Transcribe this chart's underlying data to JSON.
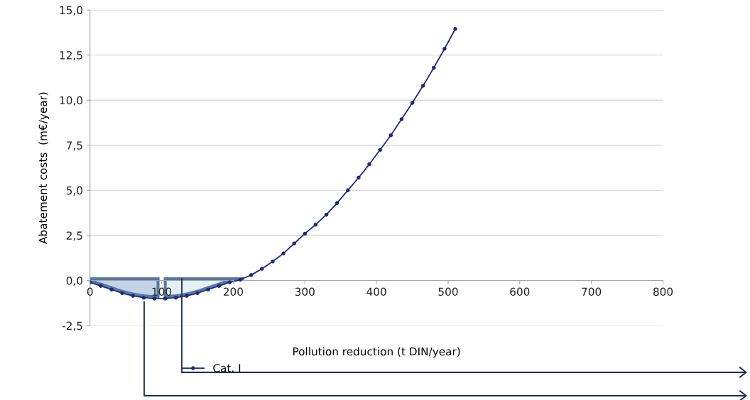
{
  "chart_data": {
    "type": "line",
    "xlabel": "Pollution reduction (t DIN/year)",
    "ylabel": "Abatement costs  (m€/year)",
    "x": [
      0,
      15,
      30,
      45,
      60,
      75,
      90,
      105,
      120,
      135,
      150,
      165,
      180,
      195,
      210,
      225,
      240,
      255,
      270,
      285,
      300,
      315,
      330,
      345,
      360,
      375,
      390,
      405,
      420,
      435,
      450,
      465,
      480,
      495,
      510
    ],
    "series": [
      {
        "name": "Cat. I",
        "color": "#1c2a80",
        "values": [
          -0.1,
          -0.3,
          -0.5,
          -0.7,
          -0.85,
          -0.95,
          -1.0,
          -1.0,
          -0.95,
          -0.85,
          -0.7,
          -0.5,
          -0.3,
          -0.1,
          0.05,
          0.3,
          0.65,
          1.05,
          1.5,
          2.05,
          2.6,
          3.1,
          3.65,
          4.3,
          5.0,
          5.7,
          6.45,
          7.25,
          8.05,
          8.95,
          9.85,
          10.8,
          11.8,
          12.85,
          13.95
        ]
      }
    ],
    "xlim": [
      0,
      800
    ],
    "xticks": [
      0,
      100,
      200,
      300,
      400,
      500,
      600,
      700,
      800
    ],
    "ylim": [
      -2.5,
      15
    ],
    "yticks": [
      {
        "value": -2.5,
        "label": "-2,5"
      },
      {
        "value": 0,
        "label": "0,0"
      },
      {
        "value": 2.5,
        "label": "2,5"
      },
      {
        "value": 5,
        "label": "5,0"
      },
      {
        "value": 7.5,
        "label": "7,5"
      },
      {
        "value": 10,
        "label": "10,0"
      },
      {
        "value": 12.5,
        "label": "12,5"
      },
      {
        "value": 15,
        "label": "15,0"
      }
    ],
    "grid": "y",
    "legend": "bottom",
    "marker": "circle",
    "line_style": "solid"
  }
}
